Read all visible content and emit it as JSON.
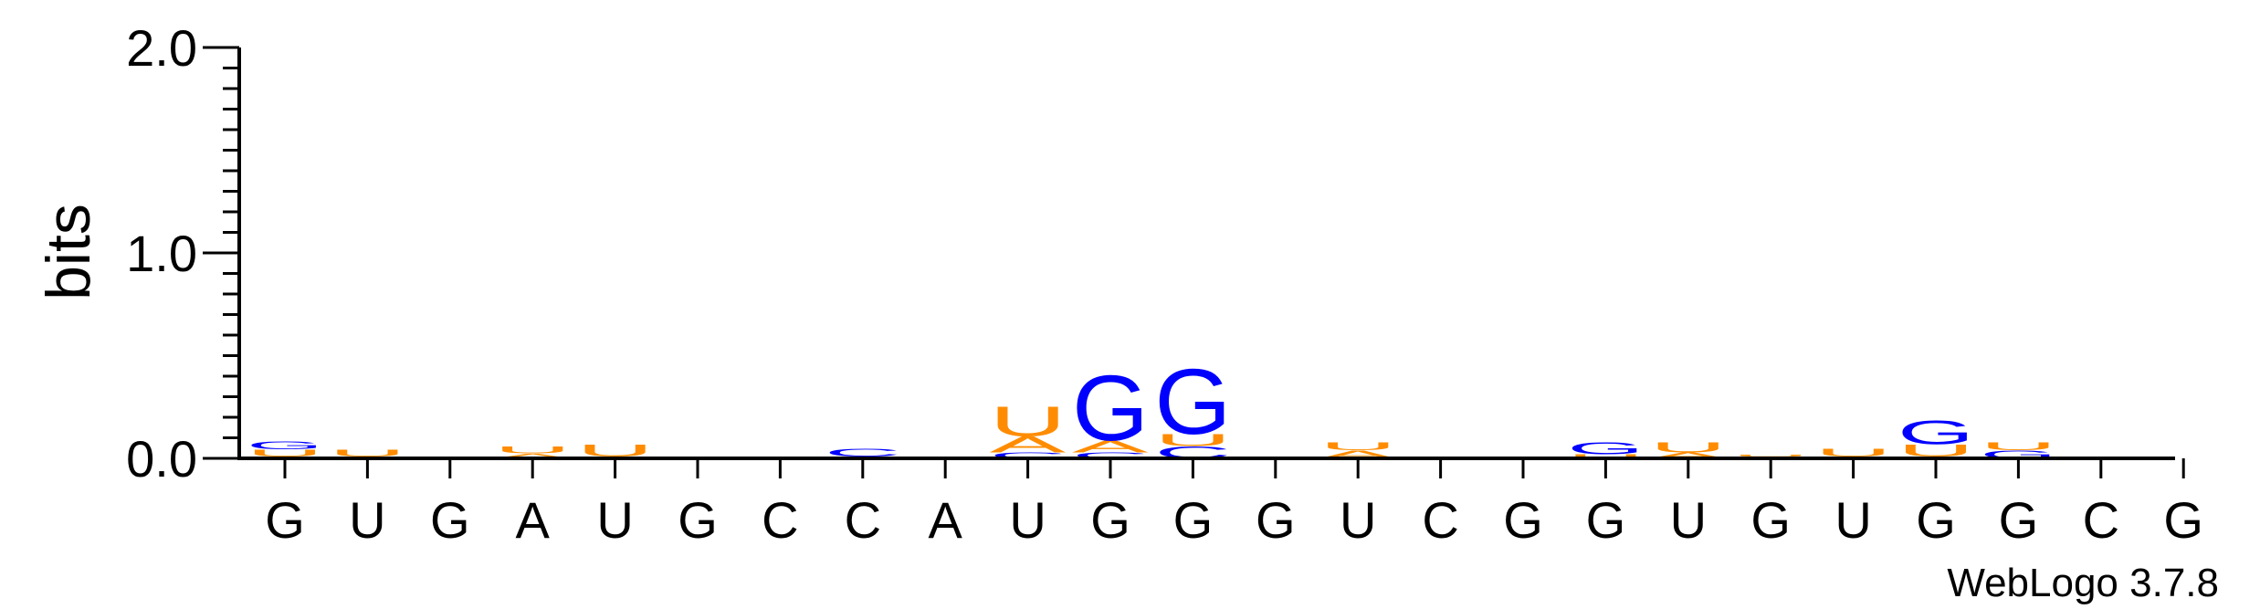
{
  "chart_data": {
    "type": "sequence-logo",
    "ylabel": "bits",
    "ylim": [
      0,
      2.0
    ],
    "yticks": [
      "0.0",
      "1.0",
      "2.0"
    ],
    "yminor_step": 0.1,
    "positions": [
      "G",
      "U",
      "G",
      "A",
      "U",
      "G",
      "C",
      "C",
      "A",
      "U",
      "G",
      "G",
      "G",
      "U",
      "C",
      "G",
      "G",
      "U",
      "G",
      "U",
      "G",
      "G",
      "C",
      "G"
    ],
    "colors": {
      "G": "#0000ff",
      "C": "#0000ff",
      "U": "#ff8c00",
      "A": "#ff8c00"
    },
    "stacks": [
      [
        {
          "l": "C",
          "h": 0.01
        },
        {
          "l": "U",
          "h": 0.035
        },
        {
          "l": "G",
          "h": 0.04
        }
      ],
      [
        {
          "l": "A",
          "h": 0.01
        },
        {
          "l": "U",
          "h": 0.035
        }
      ],
      [],
      [
        {
          "l": "A",
          "h": 0.025
        },
        {
          "l": "U",
          "h": 0.035
        }
      ],
      [
        {
          "l": "A",
          "h": 0.01
        },
        {
          "l": "U",
          "h": 0.06
        }
      ],
      [],
      [],
      [
        {
          "l": "A",
          "h": 0.01
        },
        {
          "l": "C",
          "h": 0.04
        }
      ],
      [],
      [
        {
          "l": "C",
          "h": 0.03
        },
        {
          "l": "A",
          "h": 0.08
        },
        {
          "l": "U",
          "h": 0.15
        }
      ],
      [
        {
          "l": "C",
          "h": 0.03
        },
        {
          "l": "A",
          "h": 0.06
        },
        {
          "l": "G",
          "h": 0.33
        }
      ],
      [
        {
          "l": "C",
          "h": 0.06
        },
        {
          "l": "U",
          "h": 0.06
        },
        {
          "l": "G",
          "h": 0.33
        }
      ],
      [],
      [
        {
          "l": "A",
          "h": 0.04
        },
        {
          "l": "U",
          "h": 0.04
        }
      ],
      [],
      [
        {
          "l": "C",
          "h": 0.01
        }
      ],
      [
        {
          "l": "U",
          "h": 0.02
        },
        {
          "l": "G",
          "h": 0.06
        }
      ],
      [
        {
          "l": "A",
          "h": 0.03
        },
        {
          "l": "U",
          "h": 0.05
        }
      ],
      [
        {
          "l": "A",
          "h": 0.01
        },
        {
          "l": "U",
          "h": 0.01
        }
      ],
      [
        {
          "l": "A",
          "h": 0.01
        },
        {
          "l": "U",
          "h": 0.04
        }
      ],
      [
        {
          "l": "C",
          "h": 0.01
        },
        {
          "l": "U",
          "h": 0.06
        },
        {
          "l": "G",
          "h": 0.12
        }
      ],
      [
        {
          "l": "G",
          "h": 0.04
        },
        {
          "l": "U",
          "h": 0.04
        }
      ],
      [],
      []
    ],
    "credit": "WebLogo 3.7.8"
  }
}
